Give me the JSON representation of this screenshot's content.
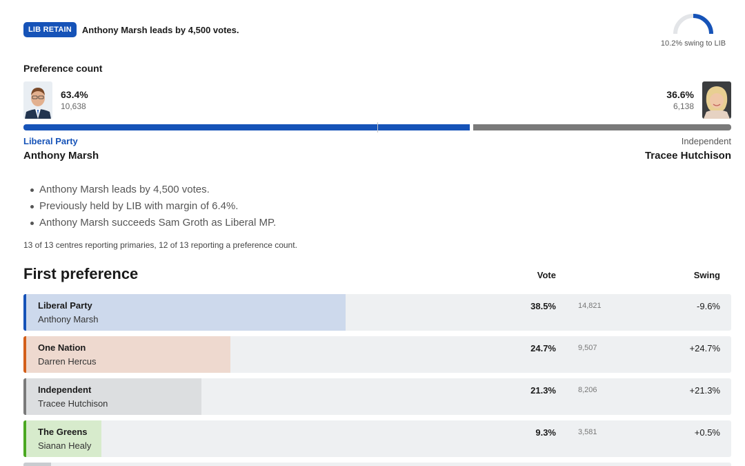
{
  "header": {
    "badge": "LIB RETAIN",
    "headline": "Anthony Marsh leads by 4,500 votes."
  },
  "swing": {
    "label": "10.2% swing to LIB",
    "value_pct": 10.2,
    "color": "#1653b8"
  },
  "preference": {
    "title": "Preference count",
    "left": {
      "pct": "63.4%",
      "votes": "10,638",
      "party": "Liberal Party",
      "name": "Anthony Marsh",
      "share": 63.4,
      "color": "#1653b8"
    },
    "right": {
      "pct": "36.6%",
      "votes": "6,138",
      "party": "Independent",
      "name": "Tracee Hutchison",
      "share": 36.6,
      "color": "#7a7a7a"
    }
  },
  "bullets": [
    "Anthony Marsh leads by 4,500 votes.",
    "Previously held by LIB with margin of 6.4%.",
    "Anthony Marsh succeeds Sam Groth as Liberal MP."
  ],
  "reporting": "13 of 13 centres reporting primaries, 12 of 13 reporting a preference count.",
  "first_preference": {
    "title": "First preference",
    "col_vote": "Vote",
    "col_swing": "Swing",
    "rows": [
      {
        "party": "Liberal Party",
        "candidate": "Anthony Marsh",
        "pct": "38.5%",
        "votes": "14,821",
        "swing": "-9.6%",
        "share": 38.5,
        "color": "#1653b8",
        "fill": "#cdd9ec"
      },
      {
        "party": "One Nation",
        "candidate": "Darren Hercus",
        "pct": "24.7%",
        "votes": "9,507",
        "swing": "+24.7%",
        "share": 24.7,
        "color": "#d35f1a",
        "fill": "#eed9cf"
      },
      {
        "party": "Independent",
        "candidate": "Tracee Hutchison",
        "pct": "21.3%",
        "votes": "8,206",
        "swing": "+21.3%",
        "share": 21.3,
        "color": "#7a7a7a",
        "fill": "#dcdee0"
      },
      {
        "party": "The Greens",
        "candidate": "Sianan Healy",
        "pct": "9.3%",
        "votes": "3,581",
        "swing": "+0.5%",
        "share": 9.3,
        "color": "#4aa820",
        "fill": "#d7ebcc"
      }
    ]
  }
}
